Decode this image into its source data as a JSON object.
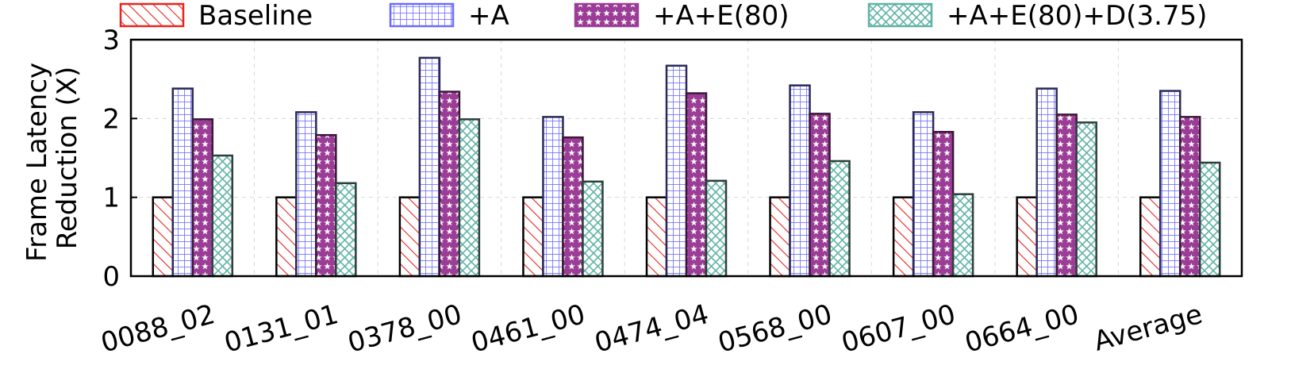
{
  "chart_data": {
    "type": "bar",
    "title": "",
    "xlabel": "",
    "ylabel": "Frame Latency Reduction (X)",
    "ylabel_lines": [
      "Frame Latency",
      "Reduction (X)"
    ],
    "ylim": [
      0,
      3
    ],
    "yticks": [
      0,
      1,
      2,
      3
    ],
    "grid": true,
    "legend_position": "top",
    "categories": [
      "0088_02",
      "0131_01",
      "0378_00",
      "0461_00",
      "0474_04",
      "0568_00",
      "0607_00",
      "0664_00",
      "Average"
    ],
    "series": [
      {
        "name": "Baseline",
        "pattern": "diagonal-hatch",
        "color": "#e8241f",
        "border": "#000000",
        "values": [
          1.0,
          1.0,
          1.0,
          1.0,
          1.0,
          1.0,
          1.0,
          1.0,
          1.0
        ]
      },
      {
        "name": "+A",
        "pattern": "grid",
        "color": "#6b6bff",
        "border": "#2a2a5a",
        "values": [
          2.38,
          2.08,
          2.77,
          2.02,
          2.67,
          2.42,
          2.08,
          2.38,
          2.35
        ]
      },
      {
        "name": "+A+E(80)",
        "pattern": "stars",
        "color": "#9b3d97",
        "border": "#3a1838",
        "values": [
          1.99,
          1.79,
          2.34,
          1.76,
          2.32,
          2.06,
          1.83,
          2.05,
          2.02
        ]
      },
      {
        "name": "+A+E(80)+D(3.75)",
        "pattern": "crosshatch",
        "color": "#5fb3a6",
        "border": "#2f3f3b",
        "values": [
          1.53,
          1.18,
          1.99,
          1.2,
          1.21,
          1.46,
          1.04,
          1.95,
          1.44
        ]
      }
    ]
  }
}
